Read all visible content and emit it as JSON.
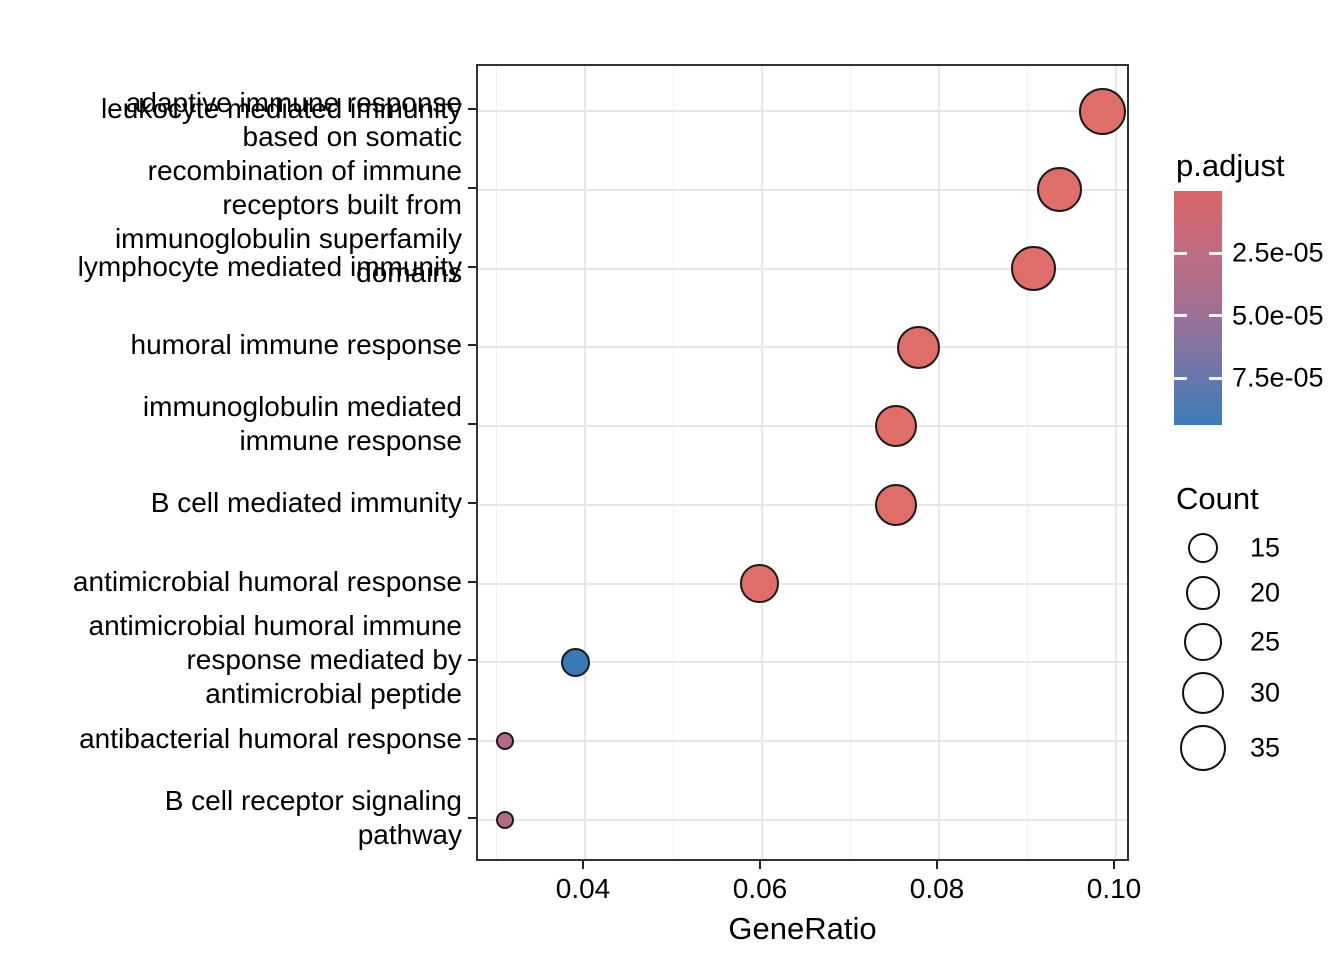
{
  "chart_data": {
    "type": "scatter",
    "variant": "go-enrichment-dotplot",
    "title": "",
    "xlabel": "GeneRatio",
    "x_major_ticks": [
      0.04,
      0.06,
      0.08,
      0.1
    ],
    "x_major_tick_labels": [
      "0.04",
      "0.06",
      "0.08",
      "0.10"
    ],
    "x_minor_ticks": [
      0.03,
      0.05,
      0.07,
      0.09
    ],
    "xlim": [
      0.0279,
      0.1017
    ],
    "grid": "light gray; vertical major+minor, horizontal at each category row",
    "legend_position": "right",
    "categories": [
      {
        "term": "leukocyte mediated immunity",
        "label_lines": [
          "leukocyte mediated immunity"
        ]
      },
      {
        "term": "adaptive immune response based on somatic recombination of immune receptors built from immunoglobulin superfamily domains",
        "label_lines": [
          "adaptive immune response",
          "based on somatic",
          "recombination of immune",
          "receptors built from",
          "immunoglobulin superfamily",
          "domains"
        ]
      },
      {
        "term": "lymphocyte mediated immunity",
        "label_lines": [
          "lymphocyte mediated immunity"
        ]
      },
      {
        "term": "humoral immune response",
        "label_lines": [
          "humoral immune response"
        ]
      },
      {
        "term": "immunoglobulin mediated immune response",
        "label_lines": [
          "immunoglobulin mediated",
          "immune response"
        ]
      },
      {
        "term": "B cell mediated immunity",
        "label_lines": [
          "B cell mediated immunity"
        ]
      },
      {
        "term": "antimicrobial humoral response",
        "label_lines": [
          "antimicrobial humoral response"
        ]
      },
      {
        "term": "antimicrobial humoral immune response mediated by antimicrobial peptide",
        "label_lines": [
          "antimicrobial humoral immune",
          "response mediated by",
          "antimicrobial peptide"
        ]
      },
      {
        "term": "antibacterial humoral response",
        "label_lines": [
          "antibacterial humoral response"
        ]
      },
      {
        "term": "B cell receptor signaling pathway",
        "label_lines": [
          "B cell receptor signaling",
          "pathway"
        ]
      }
    ],
    "points": [
      {
        "term": "leukocyte mediated immunity",
        "gene_ratio": 0.0985,
        "count": 35,
        "p_adjust_approx": 1e-06,
        "color": "#DF6D68",
        "radius_px": 23.5
      },
      {
        "term": "adaptive immune response based on somatic recombination of immune receptors built from immunoglobulin superfamily domains",
        "gene_ratio": 0.0936,
        "count": 33,
        "p_adjust_approx": 1e-06,
        "color": "#DF6D68",
        "radius_px": 22.6
      },
      {
        "term": "lymphocyte mediated immunity",
        "gene_ratio": 0.0907,
        "count": 32,
        "p_adjust_approx": 1e-06,
        "color": "#DF6D68",
        "radius_px": 22.3
      },
      {
        "term": "humoral immune response",
        "gene_ratio": 0.0777,
        "count": 28,
        "p_adjust_approx": 2e-06,
        "color": "#DF6D68",
        "radius_px": 21.5
      },
      {
        "term": "immunoglobulin mediated immune response",
        "gene_ratio": 0.0751,
        "count": 27,
        "p_adjust_approx": 2e-06,
        "color": "#DF6D68",
        "radius_px": 21.0
      },
      {
        "term": "B cell mediated immunity",
        "gene_ratio": 0.0751,
        "count": 27,
        "p_adjust_approx": 2e-06,
        "color": "#DF6D68",
        "radius_px": 21.0
      },
      {
        "term": "antimicrobial humoral response",
        "gene_ratio": 0.0597,
        "count": 24,
        "p_adjust_approx": 3e-06,
        "color": "#DF6D68",
        "radius_px": 19.2
      },
      {
        "term": "antimicrobial humoral immune response mediated by antimicrobial peptide",
        "gene_ratio": 0.0389,
        "count": 14,
        "p_adjust_approx": 9e-05,
        "color": "#3779B2",
        "radius_px": 14.5
      },
      {
        "term": "antibacterial humoral response",
        "gene_ratio": 0.031,
        "count": 8,
        "p_adjust_approx": 4.5e-05,
        "color": "#B16B87",
        "radius_px": 9
      },
      {
        "term": "B cell receptor signaling pathway",
        "gene_ratio": 0.031,
        "count": 8,
        "p_adjust_approx": 4.5e-05,
        "color": "#B16B87",
        "radius_px": 9
      }
    ],
    "legends": {
      "color": {
        "title": "p.adjust",
        "tick_labels": [
          "2.5e-05",
          "5.0e-05",
          "7.5e-05"
        ],
        "tick_values": [
          2.5e-05,
          5e-05,
          7.5e-05
        ],
        "gradient_stops": [
          "#DB646A",
          "#C16C80",
          "#A16F94",
          "#7276A8",
          "#3A7CB8"
        ],
        "orientation": "vertical, red (low p) at top, blue (high p) at bottom"
      },
      "size": {
        "title": "Count",
        "entries": [
          {
            "label": "15",
            "radius_px": 15
          },
          {
            "label": "20",
            "radius_px": 16.7
          },
          {
            "label": "25",
            "radius_px": 18.7
          },
          {
            "label": "30",
            "radius_px": 21.3
          },
          {
            "label": "35",
            "radius_px": 23.3
          }
        ]
      }
    },
    "colors": {
      "grid_major": "#E7E7E7",
      "grid_minor": "#EFEFEF",
      "panel_border": "#333333",
      "axis_text": "#000000",
      "point_stroke": "#1A1A1A",
      "background": "#FFFFFF"
    }
  }
}
